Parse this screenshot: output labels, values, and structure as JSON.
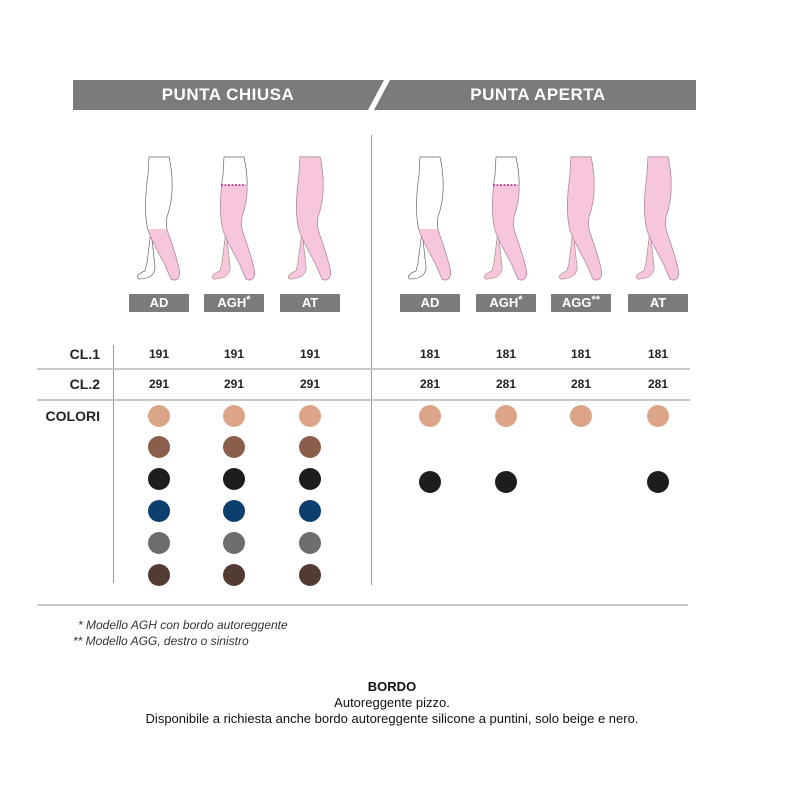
{
  "header": {
    "left": "PUNTA CHIUSA",
    "right": "PUNTA APERTA"
  },
  "rows": {
    "cl1": "CL.1",
    "cl2": "CL.2",
    "colori": "COLORI"
  },
  "columns": [
    {
      "group": "chiusa",
      "model": "AD",
      "mark": "",
      "cl1": "191",
      "cl2": "291",
      "coverage": "below-knee",
      "colors": [
        "#dba489",
        "#8b5e4b",
        "#1d1d1d",
        "#0d3f6e",
        "#6d6d6f",
        "#523b32"
      ]
    },
    {
      "group": "chiusa",
      "model": "AGH",
      "mark": "*",
      "cl1": "191",
      "cl2": "291",
      "coverage": "thigh",
      "colors": [
        "#dba489",
        "#8b5e4b",
        "#1d1d1d",
        "#0d3f6e",
        "#6d6d6f",
        "#523b32"
      ]
    },
    {
      "group": "chiusa",
      "model": "AT",
      "mark": "",
      "cl1": "191",
      "cl2": "291",
      "coverage": "full",
      "colors": [
        "#dba489",
        "#8b5e4b",
        "#1d1d1d",
        "#0d3f6e",
        "#6d6d6f",
        "#523b32"
      ]
    },
    {
      "group": "aperta",
      "model": "AD",
      "mark": "",
      "cl1": "181",
      "cl2": "281",
      "coverage": "below-knee",
      "colors": [
        "#dba489",
        null,
        "#1d1d1d"
      ]
    },
    {
      "group": "aperta",
      "model": "AGH",
      "mark": "*",
      "cl1": "181",
      "cl2": "281",
      "coverage": "thigh",
      "colors": [
        "#dba489",
        null,
        "#1d1d1d"
      ]
    },
    {
      "group": "aperta",
      "model": "AGG",
      "mark": "**",
      "cl1": "181",
      "cl2": "281",
      "coverage": "full",
      "colors": [
        "#dba489"
      ]
    },
    {
      "group": "aperta",
      "model": "AT",
      "mark": "",
      "cl1": "181",
      "cl2": "281",
      "coverage": "full",
      "colors": [
        "#dba489",
        null,
        "#1d1d1d"
      ]
    }
  ],
  "footnotes": [
    "* Modello AGH con bordo autoreggente",
    "** Modello AGG, destro o sinistro"
  ],
  "bordo": {
    "title": "BORDO",
    "line1": "Autoreggente pizzo.",
    "line2": "Disponibile a richiesta anche bordo autoreggente silicone a puntini, solo beige e nero."
  },
  "colors": {
    "bar": "#7b7b7d",
    "stocking": "#f5c6dc"
  }
}
